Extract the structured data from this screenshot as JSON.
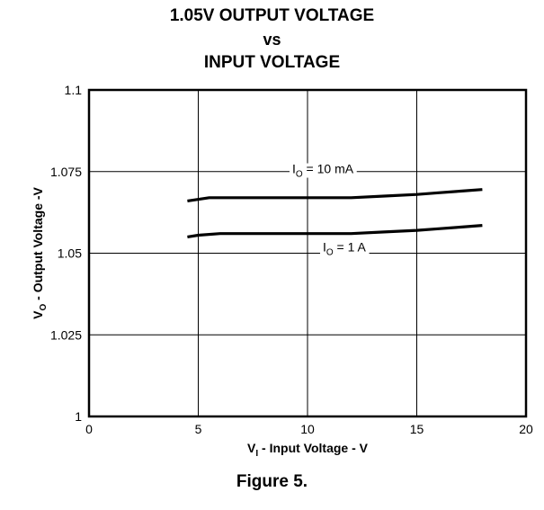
{
  "chart_data": {
    "type": "line",
    "title_lines": [
      "1.05V OUTPUT VOLTAGE",
      "vs",
      "INPUT VOLTAGE"
    ],
    "xlabel": {
      "main": "V",
      "sub": "I",
      "rest": " - Input Voltage - V"
    },
    "ylabel": {
      "main": "V",
      "sub": "O",
      "rest": " - Output Voltage -V"
    },
    "xlim": [
      0,
      20
    ],
    "ylim": [
      1,
      1.1
    ],
    "xticks": [
      0,
      5,
      10,
      15,
      20
    ],
    "xtick_labels": [
      "0",
      "5",
      "10",
      "15",
      "20"
    ],
    "yticks": [
      1,
      1.025,
      1.05,
      1.075,
      1.1
    ],
    "ytick_labels": [
      "1",
      "1.025",
      "1.05",
      "1.075",
      "1.1"
    ],
    "grid": true,
    "series": [
      {
        "annotation": {
          "main": "I",
          "sub": "O",
          "rest": " = 10 mA"
        },
        "x": [
          4.5,
          5.5,
          8,
          10,
          12,
          13.5,
          15,
          16,
          17,
          18
        ],
        "y": [
          1.066,
          1.067,
          1.067,
          1.067,
          1.067,
          1.0675,
          1.068,
          1.0685,
          1.069,
          1.0695
        ]
      },
      {
        "annotation": {
          "main": "I",
          "sub": "O",
          "rest": " = 1 A"
        },
        "x": [
          4.5,
          5,
          6,
          8,
          10,
          12,
          13.5,
          15,
          16,
          17,
          18
        ],
        "y": [
          1.055,
          1.0555,
          1.056,
          1.056,
          1.056,
          1.056,
          1.0565,
          1.057,
          1.0575,
          1.058,
          1.0585
        ]
      }
    ]
  },
  "figure_caption": "Figure 5."
}
